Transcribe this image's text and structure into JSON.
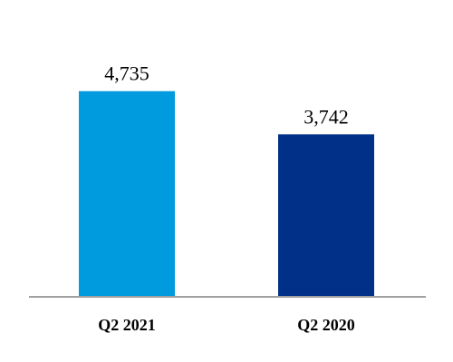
{
  "chart_data": {
    "type": "bar",
    "categories": [
      "Q2 2021",
      "Q2 2020"
    ],
    "values": [
      4735,
      3742
    ],
    "value_labels": [
      "4,735",
      "3,742"
    ],
    "colors": [
      "#009ade",
      "#003087"
    ],
    "axis_color": "#a0a0a0",
    "ylim": [
      0,
      6000
    ],
    "grid": false,
    "legend": "none",
    "title": "",
    "xlabel": "",
    "ylabel": ""
  }
}
